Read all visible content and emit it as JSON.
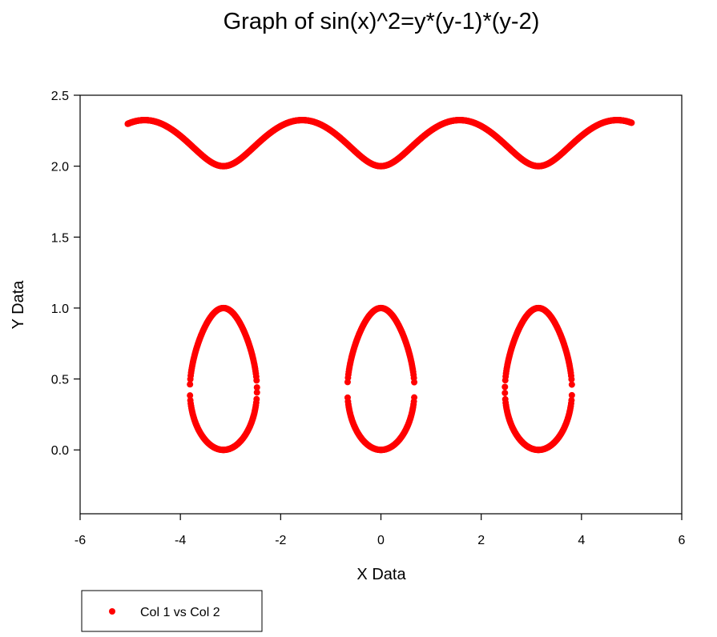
{
  "chart_data": {
    "type": "scatter",
    "title": "Graph of sin(x)^2=y*(y-1)*(y-2)",
    "xlabel": "X Data",
    "ylabel": "Y Data",
    "xlim": [
      -6,
      6
    ],
    "ylim": [
      -0.45,
      2.5
    ],
    "xticks": [
      -6,
      -4,
      -2,
      0,
      2,
      4,
      6
    ],
    "xtick_labels": [
      "-6",
      "-4",
      "-2",
      "0",
      "2",
      "4",
      "6"
    ],
    "yticks": [
      0.0,
      0.5,
      1.0,
      1.5,
      2.0,
      2.5
    ],
    "ytick_labels": [
      "0.0",
      "0.5",
      "1.0",
      "1.5",
      "2.0",
      "2.5"
    ],
    "grid": false,
    "legend_placement": "bottom-left",
    "x_range": [
      -5.05,
      5.0
    ],
    "series": [
      {
        "name": "Col 1 vs Col 2",
        "color": "#ff0000",
        "marker": "circle",
        "equation": "sin(x)^2 = y*(y-1)*(y-2)"
      }
    ]
  }
}
